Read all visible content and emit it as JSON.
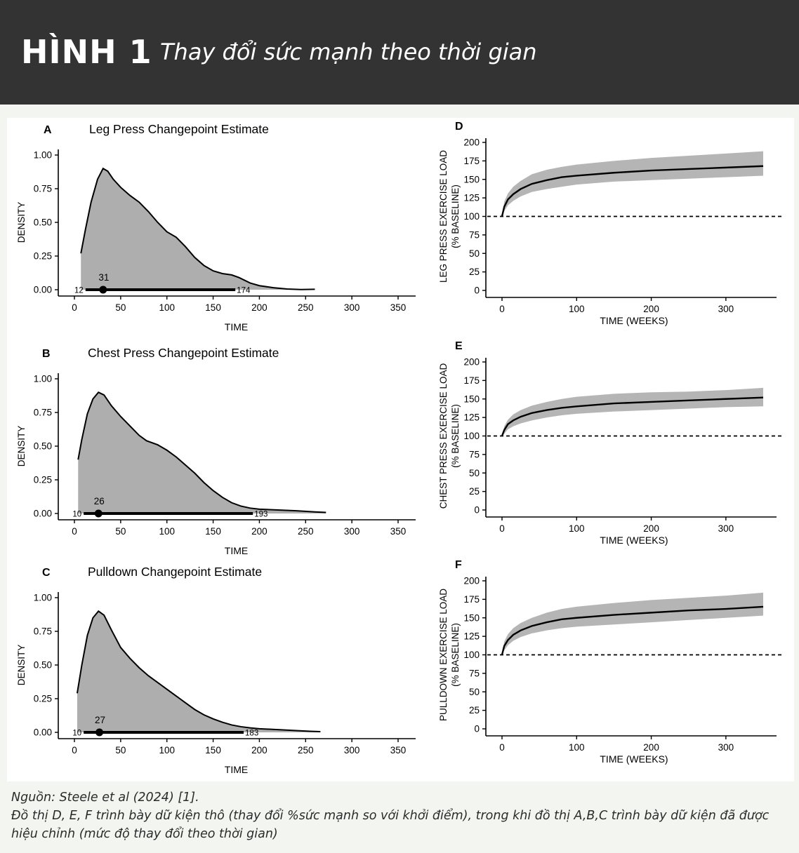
{
  "header": {
    "figure_number": "HÌNH 1",
    "figure_title": "Thay đổi sức mạnh theo thời gian"
  },
  "footer": {
    "source": "Nguồn: Steele et al (2024) [1].",
    "note": "Đồ thị D, E, F trình bày dữ kiện thô (thay đổi %sức mạnh so với khởi điểm), trong khi đồ thị A,B,C trình bày dữ kiện đã được hiệu chỉnh (mức độ thay đổi theo thời gian)"
  },
  "colors": {
    "header_bg": "#333333",
    "page_bg": "#f3f6f0",
    "fill": "#aeaeae",
    "band": "#b5b5b5",
    "line": "#000000"
  },
  "chart_data": [
    {
      "id": "A",
      "type": "area",
      "letter": "A",
      "title": "Leg Press Changepoint Estimate",
      "xlabel": "TIME",
      "ylabel": "DENSITY",
      "xlim": [
        -20,
        370
      ],
      "ylim": [
        -0.05,
        1.05
      ],
      "xticks": [
        0,
        50,
        100,
        150,
        200,
        250,
        300,
        350
      ],
      "yticks": [
        "0.00",
        "0.25",
        "0.50",
        "0.75",
        "1.00"
      ],
      "density": [
        [
          7,
          0.27
        ],
        [
          12,
          0.45
        ],
        [
          18,
          0.65
        ],
        [
          25,
          0.82
        ],
        [
          31,
          0.9
        ],
        [
          36,
          0.88
        ],
        [
          42,
          0.82
        ],
        [
          50,
          0.76
        ],
        [
          60,
          0.7
        ],
        [
          70,
          0.65
        ],
        [
          80,
          0.58
        ],
        [
          90,
          0.5
        ],
        [
          100,
          0.43
        ],
        [
          110,
          0.39
        ],
        [
          120,
          0.32
        ],
        [
          130,
          0.24
        ],
        [
          140,
          0.18
        ],
        [
          150,
          0.14
        ],
        [
          160,
          0.12
        ],
        [
          170,
          0.11
        ],
        [
          178,
          0.09
        ],
        [
          190,
          0.05
        ],
        [
          200,
          0.03
        ],
        [
          215,
          0.015
        ],
        [
          230,
          0.005
        ],
        [
          245,
          0.001
        ],
        [
          260,
          0.003
        ]
      ],
      "point_estimate": 31,
      "interval": [
        12,
        174
      ],
      "point_label": "31",
      "interval_low_label": "12",
      "interval_high_label": "174"
    },
    {
      "id": "B",
      "type": "area",
      "letter": "B",
      "title": "Chest Press Changepoint Estimate",
      "xlabel": "TIME",
      "ylabel": "DENSITY",
      "xlim": [
        -20,
        370
      ],
      "ylim": [
        -0.05,
        1.05
      ],
      "xticks": [
        0,
        50,
        100,
        150,
        200,
        250,
        300,
        350
      ],
      "yticks": [
        "0.00",
        "0.25",
        "0.50",
        "0.75",
        "1.00"
      ],
      "density": [
        [
          4,
          0.4
        ],
        [
          8,
          0.55
        ],
        [
          14,
          0.74
        ],
        [
          20,
          0.85
        ],
        [
          26,
          0.9
        ],
        [
          32,
          0.88
        ],
        [
          40,
          0.8
        ],
        [
          50,
          0.72
        ],
        [
          60,
          0.65
        ],
        [
          70,
          0.58
        ],
        [
          78,
          0.54
        ],
        [
          90,
          0.51
        ],
        [
          100,
          0.47
        ],
        [
          110,
          0.42
        ],
        [
          120,
          0.36
        ],
        [
          130,
          0.3
        ],
        [
          140,
          0.23
        ],
        [
          150,
          0.17
        ],
        [
          160,
          0.12
        ],
        [
          170,
          0.08
        ],
        [
          180,
          0.055
        ],
        [
          190,
          0.04
        ],
        [
          200,
          0.032
        ],
        [
          220,
          0.026
        ],
        [
          240,
          0.02
        ],
        [
          260,
          0.012
        ],
        [
          272,
          0.008
        ]
      ],
      "point_estimate": 26,
      "interval": [
        10,
        193
      ],
      "point_label": "26",
      "interval_low_label": "10",
      "interval_high_label": "193"
    },
    {
      "id": "C",
      "type": "area",
      "letter": "C",
      "title": "Pulldown Changepoint Estimate",
      "xlabel": "TIME",
      "ylabel": "DENSITY",
      "xlim": [
        -20,
        370
      ],
      "ylim": [
        -0.05,
        1.05
      ],
      "xticks": [
        0,
        50,
        100,
        150,
        200,
        250,
        300,
        350
      ],
      "yticks": [
        "0.00",
        "0.25",
        "0.50",
        "0.75",
        "1.00"
      ],
      "density": [
        [
          3,
          0.29
        ],
        [
          8,
          0.5
        ],
        [
          14,
          0.72
        ],
        [
          20,
          0.85
        ],
        [
          26,
          0.9
        ],
        [
          32,
          0.87
        ],
        [
          40,
          0.76
        ],
        [
          50,
          0.63
        ],
        [
          60,
          0.55
        ],
        [
          70,
          0.48
        ],
        [
          80,
          0.42
        ],
        [
          90,
          0.37
        ],
        [
          100,
          0.32
        ],
        [
          110,
          0.27
        ],
        [
          120,
          0.22
        ],
        [
          130,
          0.17
        ],
        [
          140,
          0.13
        ],
        [
          150,
          0.1
        ],
        [
          160,
          0.075
        ],
        [
          170,
          0.055
        ],
        [
          180,
          0.042
        ],
        [
          190,
          0.033
        ],
        [
          200,
          0.027
        ],
        [
          220,
          0.02
        ],
        [
          240,
          0.013
        ],
        [
          255,
          0.008
        ],
        [
          266,
          0.005
        ]
      ],
      "point_estimate": 27,
      "interval": [
        10,
        183
      ],
      "point_label": "27",
      "interval_low_label": "10",
      "interval_high_label": "183"
    },
    {
      "id": "D",
      "type": "line",
      "letter": "D",
      "title": "",
      "xlabel": "TIME (WEEKS)",
      "ylabel_lines": [
        "LEG PRESS EXERCISE LOAD",
        "(% BASELINE)"
      ],
      "xlim": [
        -10,
        365
      ],
      "ylim": [
        -10,
        210
      ],
      "xticks": [
        0,
        100,
        200,
        300
      ],
      "yticks": [
        0,
        25,
        50,
        75,
        100,
        125,
        150,
        175,
        200
      ],
      "baseline": 100,
      "line": [
        [
          0,
          100
        ],
        [
          3,
          113
        ],
        [
          8,
          123
        ],
        [
          15,
          130
        ],
        [
          25,
          137
        ],
        [
          40,
          144
        ],
        [
          60,
          149
        ],
        [
          80,
          153
        ],
        [
          100,
          155
        ],
        [
          150,
          159
        ],
        [
          200,
          162
        ],
        [
          250,
          164
        ],
        [
          300,
          166
        ],
        [
          350,
          168
        ]
      ],
      "band_upper": [
        [
          0,
          100
        ],
        [
          3,
          120
        ],
        [
          8,
          131
        ],
        [
          15,
          140
        ],
        [
          25,
          148
        ],
        [
          40,
          157
        ],
        [
          60,
          163
        ],
        [
          80,
          167
        ],
        [
          100,
          170
        ],
        [
          150,
          175
        ],
        [
          200,
          179
        ],
        [
          250,
          182
        ],
        [
          300,
          185
        ],
        [
          350,
          188
        ]
      ],
      "band_lower": [
        [
          0,
          100
        ],
        [
          3,
          107
        ],
        [
          8,
          115
        ],
        [
          15,
          121
        ],
        [
          25,
          127
        ],
        [
          40,
          133
        ],
        [
          60,
          137
        ],
        [
          80,
          140
        ],
        [
          100,
          143
        ],
        [
          150,
          147
        ],
        [
          200,
          149
        ],
        [
          250,
          151
        ],
        [
          300,
          153
        ],
        [
          350,
          155
        ]
      ]
    },
    {
      "id": "E",
      "type": "line",
      "letter": "E",
      "title": "",
      "xlabel": "TIME (WEEKS)",
      "ylabel_lines": [
        "CHEST PRESS EXERCISE LOAD",
        "(% BASELINE)"
      ],
      "xlim": [
        -10,
        365
      ],
      "ylim": [
        -10,
        210
      ],
      "xticks": [
        0,
        100,
        200,
        300
      ],
      "yticks": [
        0,
        25,
        50,
        75,
        100,
        125,
        150,
        175,
        200
      ],
      "baseline": 100,
      "line": [
        [
          0,
          100
        ],
        [
          3,
          108
        ],
        [
          8,
          116
        ],
        [
          15,
          121
        ],
        [
          25,
          126
        ],
        [
          40,
          131
        ],
        [
          60,
          135
        ],
        [
          80,
          138
        ],
        [
          100,
          140
        ],
        [
          150,
          144
        ],
        [
          200,
          146
        ],
        [
          250,
          148
        ],
        [
          300,
          150
        ],
        [
          350,
          152
        ]
      ],
      "band_upper": [
        [
          0,
          100
        ],
        [
          3,
          113
        ],
        [
          8,
          122
        ],
        [
          15,
          129
        ],
        [
          25,
          135
        ],
        [
          40,
          141
        ],
        [
          60,
          146
        ],
        [
          80,
          150
        ],
        [
          100,
          153
        ],
        [
          150,
          157
        ],
        [
          200,
          159
        ],
        [
          250,
          160
        ],
        [
          300,
          162
        ],
        [
          350,
          165
        ]
      ],
      "band_lower": [
        [
          0,
          100
        ],
        [
          3,
          103
        ],
        [
          8,
          109
        ],
        [
          15,
          113
        ],
        [
          25,
          117
        ],
        [
          40,
          121
        ],
        [
          60,
          125
        ],
        [
          80,
          128
        ],
        [
          100,
          130
        ],
        [
          150,
          133
        ],
        [
          200,
          135
        ],
        [
          250,
          137
        ],
        [
          300,
          139
        ],
        [
          350,
          140
        ]
      ]
    },
    {
      "id": "F",
      "type": "line",
      "letter": "F",
      "title": "",
      "xlabel": "TIME (WEEKS)",
      "ylabel_lines": [
        "PULLDOWN EXERCISE LOAD",
        "(% BASELINE)"
      ],
      "xlim": [
        -10,
        365
      ],
      "ylim": [
        -10,
        210
      ],
      "xticks": [
        0,
        100,
        200,
        300
      ],
      "yticks": [
        0,
        25,
        50,
        75,
        100,
        125,
        150,
        175,
        200
      ],
      "baseline": 100,
      "line": [
        [
          0,
          100
        ],
        [
          3,
          112
        ],
        [
          8,
          120
        ],
        [
          15,
          127
        ],
        [
          25,
          133
        ],
        [
          40,
          139
        ],
        [
          60,
          144
        ],
        [
          80,
          148
        ],
        [
          100,
          150
        ],
        [
          150,
          154
        ],
        [
          200,
          157
        ],
        [
          250,
          160
        ],
        [
          300,
          162
        ],
        [
          350,
          165
        ]
      ],
      "band_upper": [
        [
          0,
          100
        ],
        [
          3,
          118
        ],
        [
          8,
          128
        ],
        [
          15,
          136
        ],
        [
          25,
          143
        ],
        [
          40,
          150
        ],
        [
          60,
          157
        ],
        [
          80,
          162
        ],
        [
          100,
          165
        ],
        [
          150,
          170
        ],
        [
          200,
          174
        ],
        [
          250,
          177
        ],
        [
          300,
          180
        ],
        [
          350,
          184
        ]
      ],
      "band_lower": [
        [
          0,
          100
        ],
        [
          3,
          106
        ],
        [
          8,
          113
        ],
        [
          15,
          119
        ],
        [
          25,
          124
        ],
        [
          40,
          129
        ],
        [
          60,
          133
        ],
        [
          80,
          136
        ],
        [
          100,
          138
        ],
        [
          150,
          141
        ],
        [
          200,
          144
        ],
        [
          250,
          147
        ],
        [
          300,
          150
        ],
        [
          350,
          153
        ]
      ]
    }
  ]
}
